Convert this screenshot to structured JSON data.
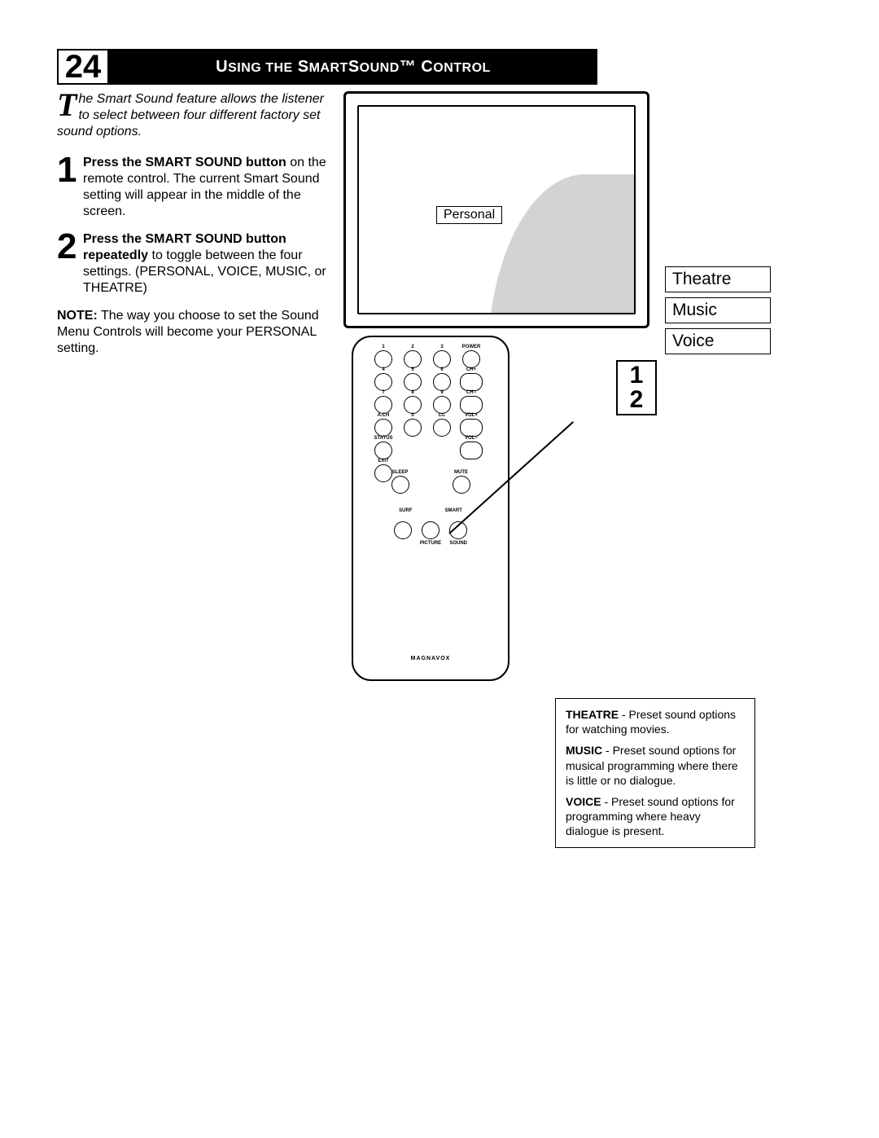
{
  "page_number": "24",
  "title": "Using the SmartSound™ Control",
  "intro_dropcap": "T",
  "intro_text": "he Smart Sound feature allows the listener to select between four different factory set sound options.",
  "steps": [
    {
      "num": "1",
      "bold": "Press the SMART SOUND button",
      "rest": " on the remote control. The current Smart Sound setting will appear in the middle of the screen."
    },
    {
      "num": "2",
      "bold": "Press the SMART SOUND button repeatedly",
      "rest": " to toggle between the four settings. (PERSONAL, VOICE, MUSIC, or THEATRE)"
    }
  ],
  "note_bold": "NOTE:",
  "note_text": " The way you choose to set the Sound Menu Controls will become your PERSONAL setting.",
  "tv_label": "Personal",
  "options": [
    "Theatre",
    "Music",
    "Voice"
  ],
  "callout_nums": [
    "1",
    "2"
  ],
  "remote": {
    "row1": [
      "1",
      "2",
      "3",
      "POWER"
    ],
    "row2": [
      "4",
      "5",
      "6",
      "CH+"
    ],
    "row3": [
      "7",
      "8",
      "9",
      "CH−"
    ],
    "row4": [
      "A.CH",
      "0",
      "CC",
      "VOL+"
    ],
    "row5_left": "STATUS",
    "row5_right": "VOL−",
    "exit": "EXIT",
    "sleep": "SLEEP",
    "mute": "MUTE",
    "surf": "SURF",
    "smart": "SMART",
    "pic": "PICTURE",
    "snd": "SOUND",
    "brand": "MAGNAVOX"
  },
  "definitions": [
    {
      "term": "THEATRE",
      "desc": " - Preset sound options for watching movies."
    },
    {
      "term": "MUSIC",
      "desc": " - Preset sound options for musical programming where there is little or no dialogue."
    },
    {
      "term": "VOICE",
      "desc": " - Preset sound options for programming where heavy dialogue is present."
    }
  ]
}
